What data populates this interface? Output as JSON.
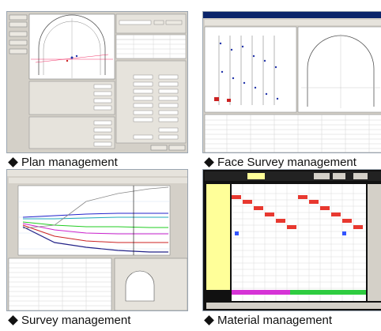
{
  "tiles": [
    {
      "caption": "Plan management"
    },
    {
      "caption": "Face Survey management"
    },
    {
      "caption": "Survey management"
    },
    {
      "caption": "Material management"
    }
  ],
  "colors": {
    "panel": "#d4d0c8",
    "blue_title": "#0a246a",
    "grid_red": "#e8382f",
    "grid_green": "#2ecc40",
    "grid_magenta": "#d633d6",
    "grid_blue": "#3355ff"
  }
}
